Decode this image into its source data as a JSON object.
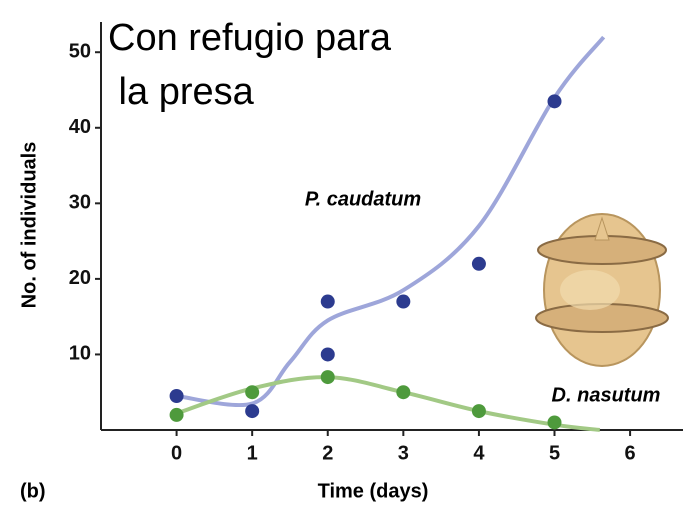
{
  "chart_data": {
    "type": "scatter",
    "title": "Con refugio para la presa",
    "panel_label": "(b)",
    "x_label": "Time (days)",
    "y_label": "No. of individuals",
    "xlim": [
      -1,
      6.7
    ],
    "ylim": [
      0,
      54
    ],
    "xticks": [
      0,
      1,
      2,
      3,
      4,
      5,
      6
    ],
    "yticks": [
      10,
      20,
      30,
      40,
      50
    ],
    "series": [
      {
        "name": "P. caudatum",
        "color": "#2c3b8f",
        "line_color": "#9ea6da",
        "x": [
          0,
          1,
          2,
          2,
          3,
          4,
          5
        ],
        "values": [
          4.5,
          2.5,
          17,
          10,
          17,
          22,
          43.5
        ],
        "trend_x": [
          0,
          1,
          1.5,
          2,
          3,
          4,
          5,
          5.65
        ],
        "trend": [
          4.5,
          3.5,
          9,
          14.5,
          18.5,
          27,
          44,
          52
        ]
      },
      {
        "name": "D. nasutum",
        "color": "#4e9a3c",
        "line_color": "#a2c985",
        "x": [
          0,
          1,
          2,
          3,
          4,
          5
        ],
        "values": [
          2,
          5,
          7,
          5,
          2.5,
          1
        ],
        "trend_x": [
          0,
          1,
          2,
          3,
          4,
          5,
          5.6
        ],
        "trend": [
          2.2,
          5.5,
          7,
          5,
          2.5,
          0.7,
          0
        ]
      }
    ]
  }
}
